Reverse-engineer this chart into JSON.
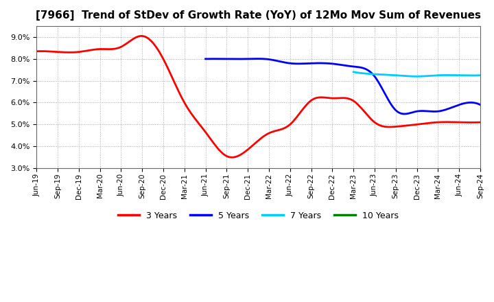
{
  "title": "[7966]  Trend of StDev of Growth Rate (YoY) of 12Mo Mov Sum of Revenues",
  "title_fontsize": 11,
  "background_color": "#ffffff",
  "grid_color": "#aaaaaa",
  "ylim": [
    0.03,
    0.095
  ],
  "yticks": [
    0.03,
    0.04,
    0.05,
    0.06,
    0.07,
    0.08,
    0.09
  ],
  "xtick_labels": [
    "Jun-19",
    "Sep-19",
    "Dec-19",
    "Mar-20",
    "Jun-20",
    "Sep-20",
    "Dec-20",
    "Mar-21",
    "Jun-21",
    "Sep-21",
    "Dec-21",
    "Mar-22",
    "Jun-22",
    "Sep-22",
    "Dec-22",
    "Mar-23",
    "Jun-23",
    "Sep-23",
    "Dec-23",
    "Mar-24",
    "Jun-24",
    "Sep-24"
  ],
  "series": [
    {
      "label": "3 Years",
      "color": "#ff0000",
      "x_indices": [
        0,
        1,
        2,
        3,
        4,
        5,
        6,
        7,
        8,
        9,
        10,
        11,
        12,
        13,
        14,
        15,
        16,
        17,
        18,
        19,
        20,
        21
      ],
      "values": [
        0.0835,
        0.0832,
        0.0832,
        0.0845,
        0.0855,
        0.0905,
        0.08,
        0.06,
        0.0465,
        0.0355,
        0.0385,
        0.046,
        0.05,
        0.061,
        0.062,
        0.0608,
        0.051,
        0.049,
        0.05,
        0.051,
        0.051,
        0.051
      ]
    },
    {
      "label": "5 Years",
      "color": "#0000ff",
      "x_indices": [
        8,
        9,
        10,
        11,
        12,
        13,
        14,
        15,
        16,
        17,
        18,
        19,
        20,
        21
      ],
      "values": [
        0.08,
        0.08,
        0.08,
        0.0798,
        0.078,
        0.078,
        0.0778,
        0.0765,
        0.072,
        0.0565,
        0.056,
        0.056,
        0.059,
        0.059
      ]
    },
    {
      "label": "7 Years",
      "color": "#00ccff",
      "x_indices": [
        15,
        16,
        17,
        18,
        19,
        20,
        21
      ],
      "values": [
        0.074,
        0.073,
        0.0725,
        0.072,
        0.0725,
        0.0725,
        0.0725
      ]
    },
    {
      "label": "10 Years",
      "color": "#008000",
      "x_indices": [],
      "values": []
    }
  ],
  "legend_colors": [
    "#ff0000",
    "#0000ff",
    "#00ccff",
    "#008000"
  ],
  "legend_labels": [
    "3 Years",
    "5 Years",
    "7 Years",
    "10 Years"
  ]
}
